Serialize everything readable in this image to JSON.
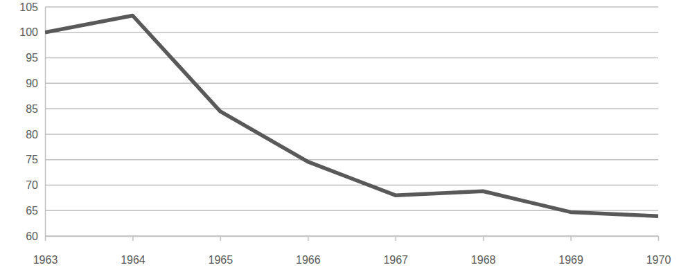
{
  "chart_data": {
    "type": "line",
    "x": [
      1963,
      1964,
      1965,
      1966,
      1967,
      1968,
      1969,
      1970
    ],
    "values": [
      100,
      103.3,
      84.5,
      74.6,
      68.0,
      68.8,
      64.7,
      63.9
    ],
    "color": "#595959",
    "xlim": [
      1963,
      1970
    ],
    "xticks": [
      1963,
      1964,
      1965,
      1966,
      1967,
      1968,
      1969,
      1970
    ],
    "ylim": [
      60,
      105
    ],
    "yticks": [
      60,
      65,
      70,
      75,
      80,
      85,
      90,
      95,
      100,
      105
    ],
    "grid": true
  }
}
